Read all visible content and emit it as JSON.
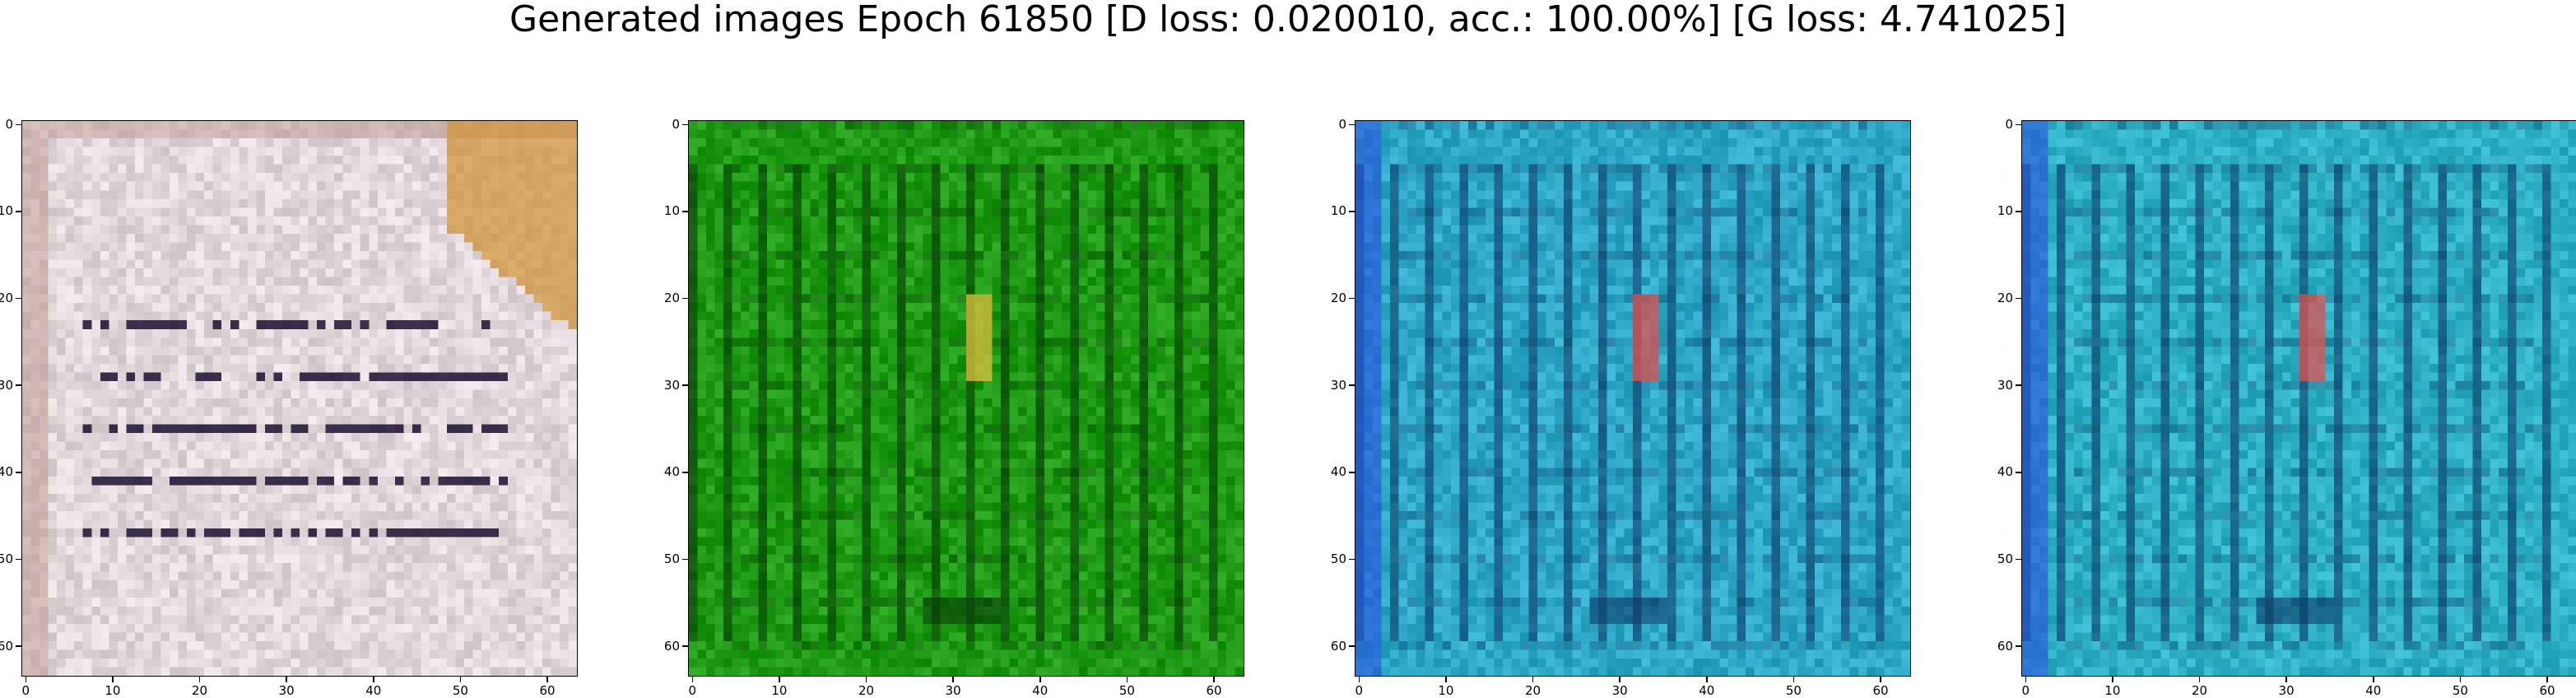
{
  "figure": {
    "title": "Generated images Epoch 61850 [D loss: 0.020010, acc.: 100.00%] [G loss: 4.741025]"
  },
  "panels": [
    {
      "name": "sample-1",
      "palette": "pale-pink-grey",
      "base": "#e2d8dc",
      "stripe": "#1a1030",
      "accent": "#d09030"
    },
    {
      "name": "sample-2",
      "palette": "green",
      "base": "#1f9a14",
      "stripe": "#063a06",
      "accent": "#e0c040"
    },
    {
      "name": "sample-3",
      "palette": "cyan-blue",
      "base": "#2fa8c8",
      "stripe": "#0c3a66",
      "accent": "#e05050"
    },
    {
      "name": "sample-4",
      "palette": "cyan-blue",
      "base": "#2fb0c4",
      "stripe": "#0c3a66",
      "accent": "#e05050"
    }
  ],
  "axes": {
    "x_ticks": [
      "0",
      "10",
      "20",
      "30",
      "40",
      "50",
      "60"
    ],
    "y_ticks": [
      "0",
      "10",
      "20",
      "30",
      "40",
      "50",
      "60"
    ],
    "xlim": [
      0,
      63
    ],
    "ylim": [
      63,
      0
    ]
  }
}
